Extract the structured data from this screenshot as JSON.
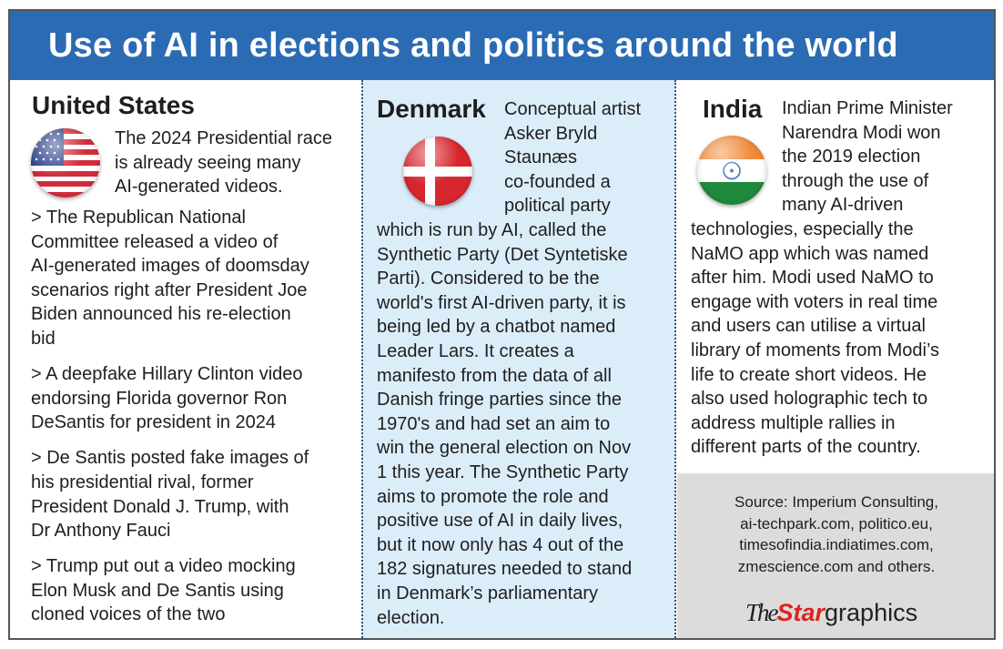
{
  "title": "Use of AI in elections and politics around the world",
  "colors": {
    "header": "#2b6bb3",
    "middle_panel": "#dcedfa",
    "source_panel": "#dcdcdc",
    "logo_red": "#e0231c"
  },
  "us": {
    "heading": "United States",
    "flag": "us-flag-icon",
    "intro": [
      "The 2024 Presidential race",
      "is already seeing many",
      "AI-generated videos."
    ],
    "bullets": [
      [
        "> The Republican National",
        "Committee released a video of",
        "AI-generated images of doomsday",
        "scenarios right after President Joe",
        "Biden announced his re-election",
        "bid"
      ],
      [
        "> A deepfake Hillary Clinton video",
        "endorsing Florida governor Ron",
        "DeSantis for president in 2024"
      ],
      [
        "> De Santis posted fake images of",
        "his presidential rival, former",
        "President Donald J. Trump, with",
        "Dr Anthony Fauci"
      ],
      [
        "> Trump put out a video mocking",
        "Elon Musk and De Santis using",
        "cloned voices of the two"
      ]
    ]
  },
  "denmark": {
    "heading": "Denmark",
    "flag": "denmark-flag-icon",
    "lines_beside": [
      "Conceptual artist",
      "Asker Bryld",
      "Staunæs",
      "co-founded a",
      "political party"
    ],
    "lines": [
      "which is run by AI, called the",
      "Synthetic Party (Det Syntetiske",
      "Parti). Considered to be the",
      "world's first AI-driven party, it is",
      "being led by a chatbot named",
      "Leader Lars. It creates a",
      "manifesto from the data of all",
      "Danish fringe parties since the",
      "1970's and had set an aim to",
      "win the general election on Nov",
      "1 this year. The Synthetic Party",
      "aims to promote the role and",
      "positive use of AI in daily lives,",
      "but it now only has 4 out of the",
      "182 signatures needed to stand",
      "in Denmark’s parliamentary",
      "election."
    ]
  },
  "india": {
    "heading": "India",
    "flag": "india-flag-icon",
    "lines_beside": [
      "Indian Prime Minister",
      "Narendra Modi won",
      "the 2019 election",
      "through the use of",
      "many AI-driven"
    ],
    "lines": [
      "technologies, especially the",
      "NaMO app which was named",
      "after him. Modi used NaMO to",
      "engage with voters in real time",
      "and users can utilise a virtual",
      "library of moments from Modi’s",
      "life to create short videos. He",
      "also used holographic tech to",
      "address multiple rallies in",
      "different parts of the country."
    ]
  },
  "source": [
    "Source: Imperium Consulting,",
    "ai-techpark.com, politico.eu,",
    "timesofindia.indiatimes.com,",
    "zmescience.com and others."
  ],
  "logo": {
    "the": "The",
    "star": "Star",
    "graphics": "graphics"
  }
}
